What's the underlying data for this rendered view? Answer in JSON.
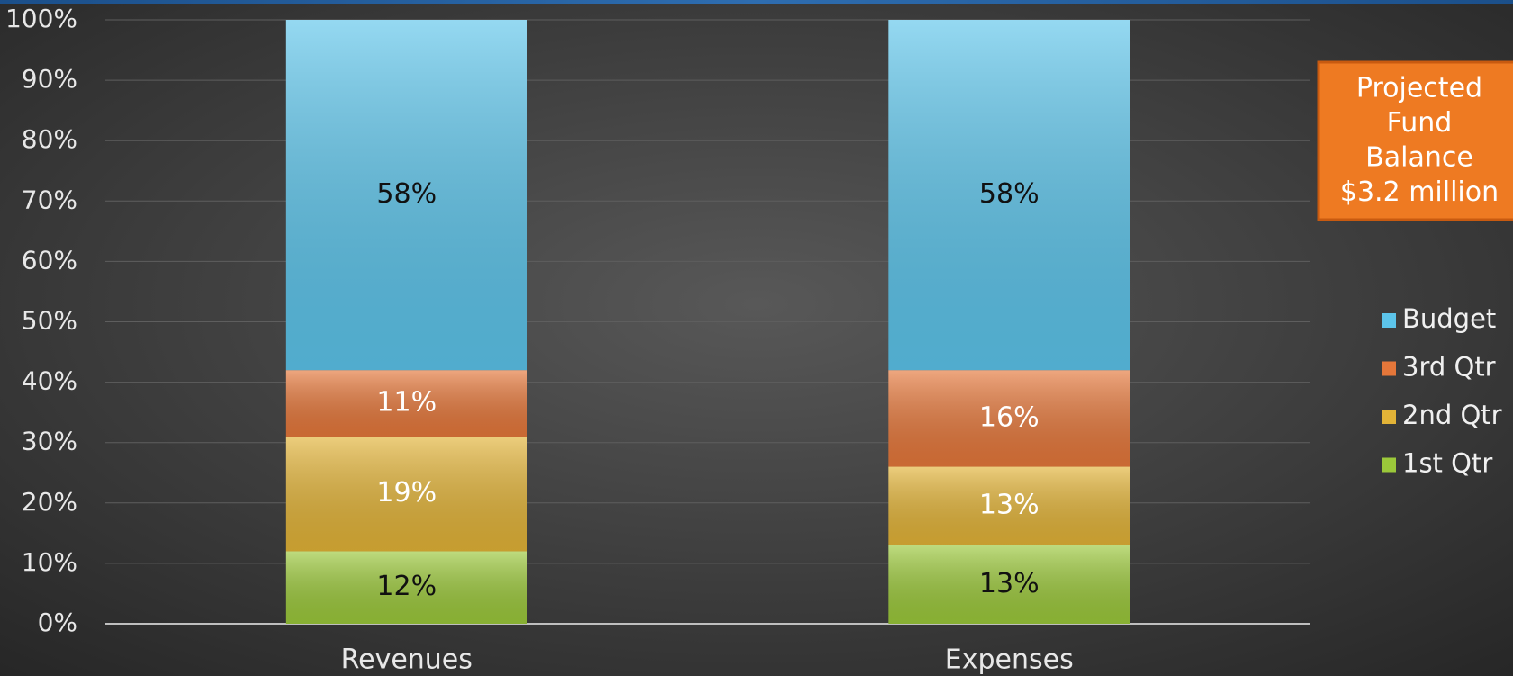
{
  "chart_data": {
    "type": "stacked_bar",
    "categories": [
      "Revenues",
      "Expenses"
    ],
    "series": [
      {
        "name": "1st Qtr",
        "color": "#9bc83a",
        "label_color": "#111111",
        "values": [
          12,
          13
        ],
        "value_labels": [
          "12%",
          "13%"
        ]
      },
      {
        "name": "2nd Qtr",
        "color": "#e2b337",
        "label_color": "#ffffff",
        "values": [
          19,
          13
        ],
        "value_labels": [
          "19%",
          "13%"
        ]
      },
      {
        "name": "3rd Qtr",
        "color": "#e5773a",
        "label_color": "#ffffff",
        "values": [
          11,
          16
        ],
        "value_labels": [
          "11%",
          "16%"
        ]
      },
      {
        "name": "Budget",
        "color": "#5cc4ea",
        "label_color": "#111111",
        "values": [
          58,
          58
        ],
        "value_labels": [
          "58%",
          "58%"
        ]
      }
    ],
    "ylim": [
      0,
      100
    ],
    "yticks": [
      {
        "value": 0,
        "label": "0%"
      },
      {
        "value": 10,
        "label": "10%"
      },
      {
        "value": 20,
        "label": "20%"
      },
      {
        "value": 30,
        "label": "30%"
      },
      {
        "value": 40,
        "label": "40%"
      },
      {
        "value": 50,
        "label": "50%"
      },
      {
        "value": 60,
        "label": "60%"
      },
      {
        "value": 70,
        "label": "70%"
      },
      {
        "value": 80,
        "label": "80%"
      },
      {
        "value": 90,
        "label": "90%"
      },
      {
        "value": 100,
        "label": "100%"
      }
    ],
    "grid": true,
    "legend": "right",
    "annotation": {
      "lines": [
        "Projected",
        "Fund",
        "Balance",
        "$3.2 million"
      ],
      "color": "#ee7a22"
    }
  }
}
